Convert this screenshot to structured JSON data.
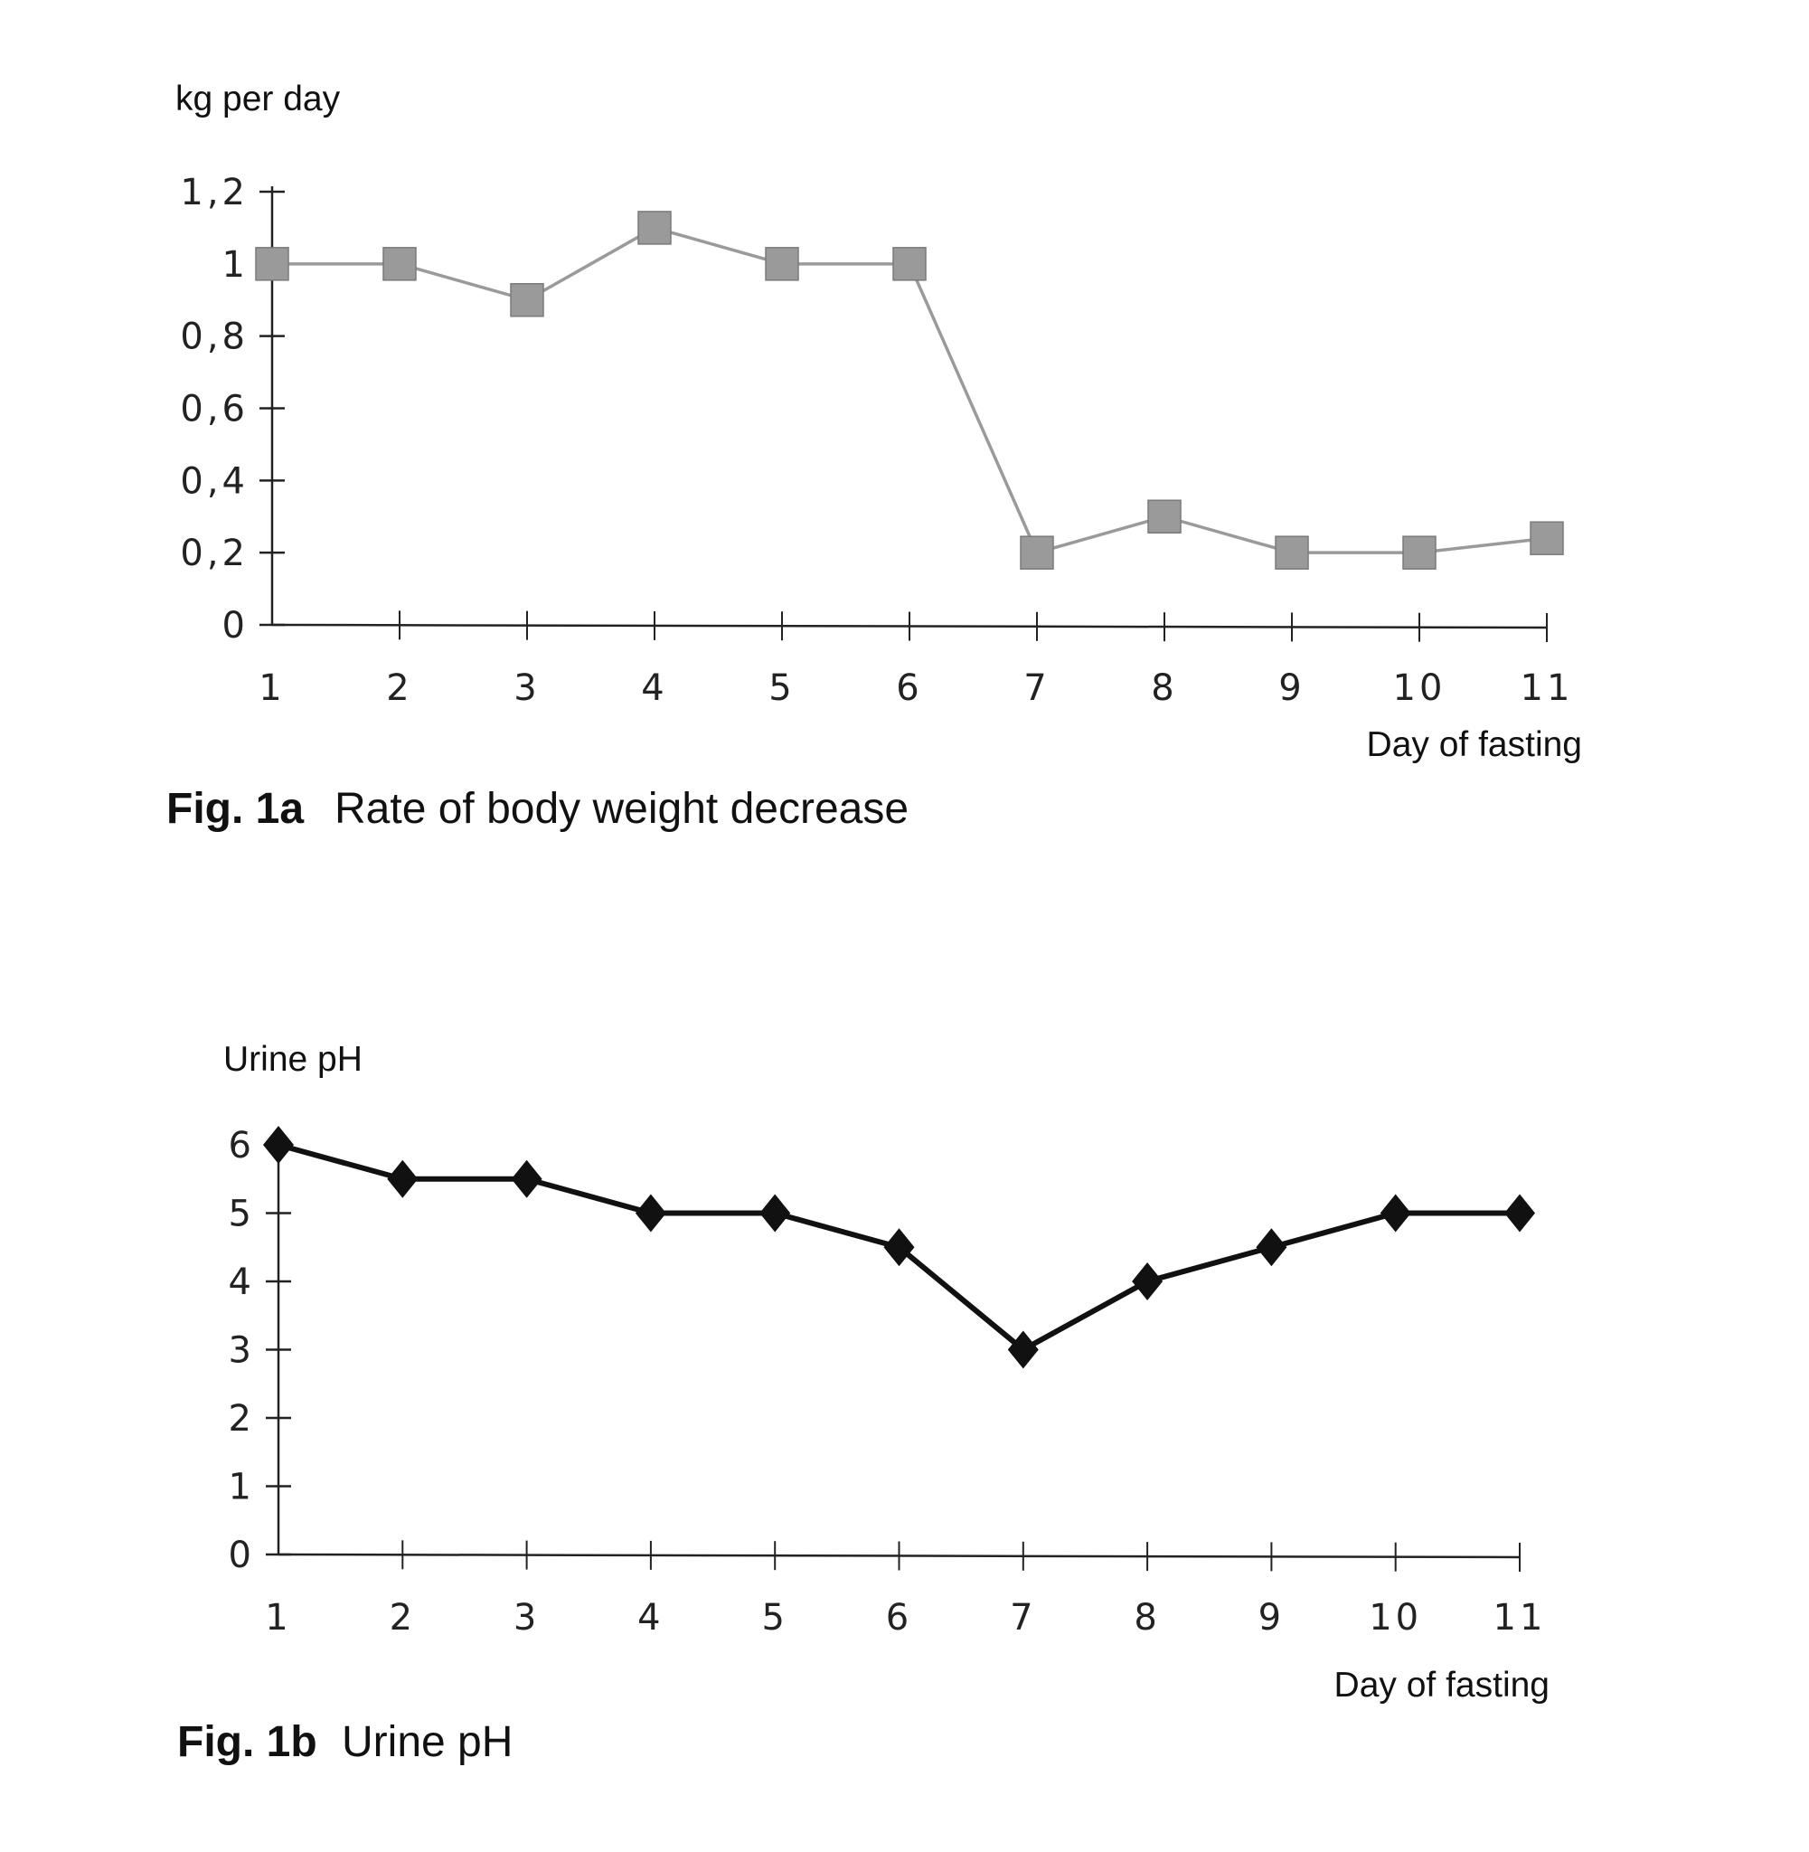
{
  "chart_data": [
    {
      "type": "line",
      "title": "Rate of body weight decrease",
      "figure_label": "Fig. 1a",
      "ylabel": "kg per day",
      "xlabel": "Day of fasting",
      "x": [
        1,
        2,
        3,
        4,
        5,
        6,
        7,
        8,
        9,
        10,
        11
      ],
      "x_tick_labels": [
        "1",
        "2",
        "3",
        "4",
        "5",
        "6",
        "7",
        "8",
        "9",
        "10",
        "11"
      ],
      "y_tick_labels": [
        "0",
        "0,2",
        "0,4",
        "0,6",
        "0,8",
        "1",
        "1,2"
      ],
      "y_ticks": [
        0,
        0.2,
        0.4,
        0.6,
        0.8,
        1,
        1.2
      ],
      "ylim": [
        0,
        1.2
      ],
      "series": [
        {
          "values": [
            1.0,
            1.0,
            0.9,
            1.1,
            1.0,
            1.0,
            0.2,
            0.3,
            0.2,
            0.2,
            0.24
          ],
          "marker": "square",
          "color": "#9a9a9a"
        }
      ],
      "grid": false
    },
    {
      "type": "line",
      "title": "Urine pH",
      "figure_label": "Fig. 1b",
      "ylabel": "Urine pH",
      "xlabel": "Day of fasting",
      "x": [
        1,
        2,
        3,
        4,
        5,
        6,
        7,
        8,
        9,
        10,
        11
      ],
      "x_tick_labels": [
        "1",
        "2",
        "3",
        "4",
        "5",
        "6",
        "7",
        "8",
        "9",
        "10",
        "11"
      ],
      "y_tick_labels": [
        "0",
        "1",
        "2",
        "3",
        "4",
        "5",
        "6"
      ],
      "y_ticks": [
        0,
        1,
        2,
        3,
        4,
        5,
        6
      ],
      "ylim": [
        0,
        6
      ],
      "series": [
        {
          "values": [
            6,
            5.5,
            5.5,
            5,
            5,
            4.5,
            3,
            4,
            4.5,
            5,
            5
          ],
          "marker": "diamond",
          "color": "#111111"
        }
      ],
      "grid": false
    }
  ]
}
